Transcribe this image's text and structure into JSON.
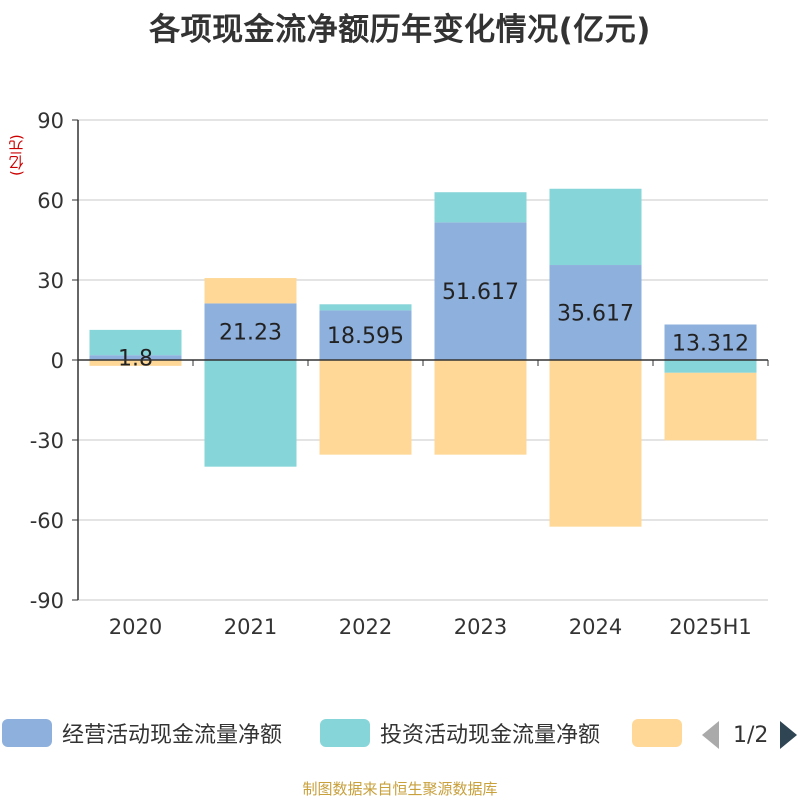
{
  "chart_data": {
    "type": "bar",
    "stacked": true,
    "title": "各项现金流净额历年变化情况(亿元)",
    "ylabel": "(亿元)",
    "categories": [
      "2020",
      "2021",
      "2022",
      "2023",
      "2024",
      "2025H1"
    ],
    "ylim": [
      -90,
      90
    ],
    "yticks": [
      90,
      60,
      30,
      0,
      -30,
      -60,
      -90
    ],
    "grid": true,
    "legend_position": "bottom",
    "series": [
      {
        "name": "经营活动现金流量净额",
        "color": "#8eb0dc",
        "values": [
          1.8,
          21.23,
          18.595,
          51.617,
          35.617,
          13.312
        ],
        "labels": [
          "1.8",
          "21.23",
          "18.595",
          "51.617",
          "35.617",
          "13.312"
        ]
      },
      {
        "name": "投资活动现金流量净额",
        "color": "#86d5d9",
        "values": [
          9.5,
          -40.0,
          2.3,
          11.3,
          28.6,
          -4.8
        ]
      },
      {
        "name": "",
        "color": "#ffd898",
        "values": [
          -2.2,
          9.5,
          -35.5,
          -35.5,
          -62.5,
          -25.3
        ]
      }
    ]
  },
  "legend": {
    "page_text": "1/2"
  },
  "source": "制图数据来自恒生聚源数据库"
}
